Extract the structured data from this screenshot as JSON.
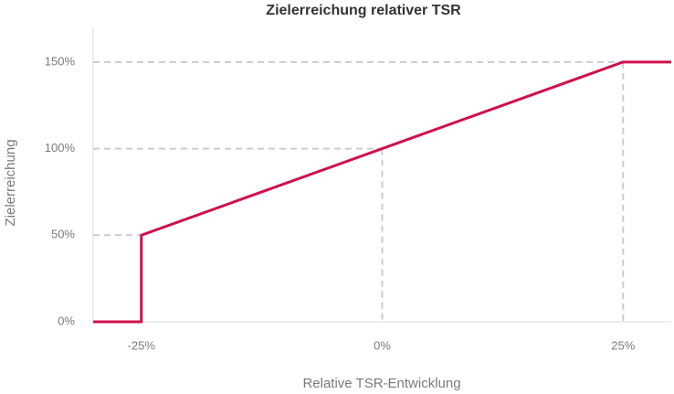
{
  "chart_data": {
    "type": "line",
    "title": "Zielerreichung relativer TSR",
    "x_label": "Relative TSR-Entwicklung",
    "y_label": "Zielerreichung",
    "x": [
      -30,
      -25,
      -25,
      0,
      25,
      30
    ],
    "values": [
      0,
      0,
      50,
      100,
      150,
      150
    ],
    "color": "#d0104c",
    "xlim": [
      -30,
      30
    ],
    "xticks": [
      {
        "value": -25,
        "label": "-25%"
      },
      {
        "value": 0,
        "label": "0%"
      },
      {
        "value": 25,
        "label": "25%"
      }
    ],
    "ylim": [
      0,
      170
    ],
    "yticks": [
      {
        "value": 0,
        "label": "0%"
      },
      {
        "value": 50,
        "label": "50%"
      },
      {
        "value": 100,
        "label": "100%"
      },
      {
        "value": 150,
        "label": "150%"
      }
    ]
  }
}
